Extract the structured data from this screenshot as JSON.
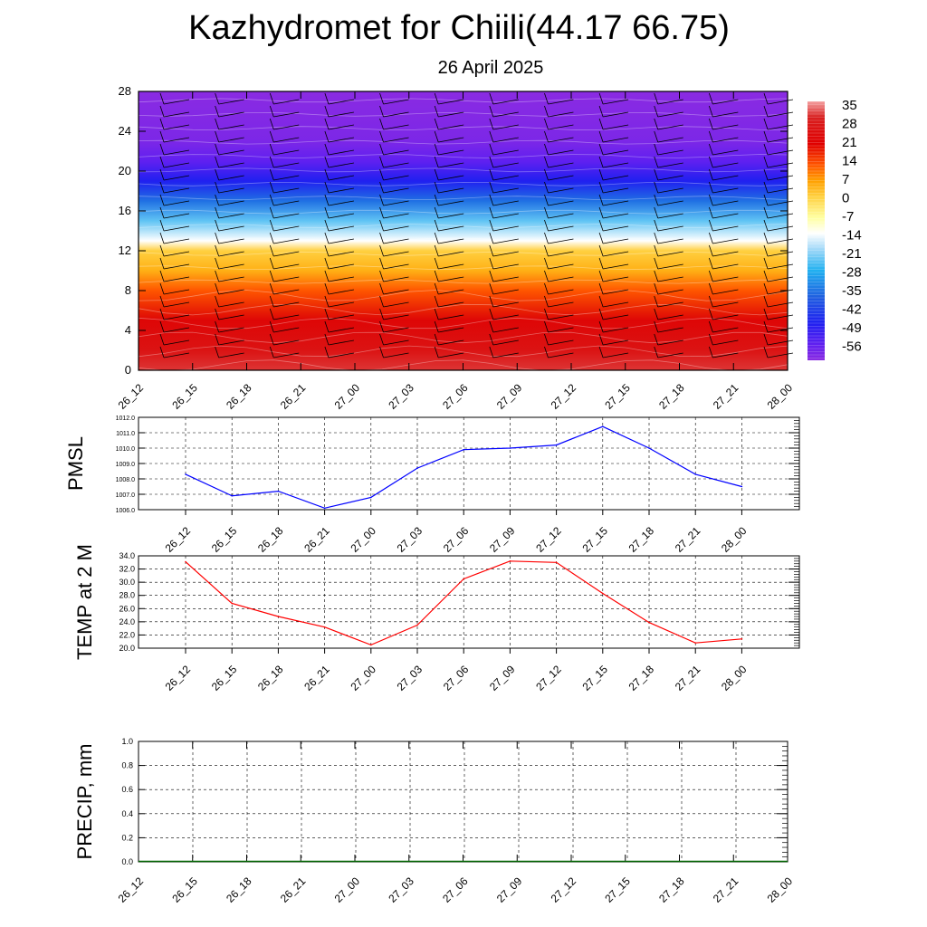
{
  "title": "Kazhydromet for Chiili(44.17 66.75)",
  "subtitle": "26 April 2025",
  "time_labels": [
    "26_12",
    "26_15",
    "26_18",
    "26_21",
    "27_00",
    "27_03",
    "27_06",
    "27_09",
    "27_12",
    "27_15",
    "27_18",
    "27_21",
    "28_00"
  ],
  "chart_data": [
    {
      "type": "heatmap",
      "name": "cross-section",
      "x": [
        "26_12",
        "26_15",
        "26_18",
        "26_21",
        "27_00",
        "27_03",
        "27_06",
        "27_09",
        "27_12",
        "27_15",
        "27_18",
        "27_21",
        "28_00"
      ],
      "ylim": [
        0,
        28
      ],
      "yticks": [
        0,
        4,
        8,
        12,
        16,
        20,
        24,
        28
      ],
      "colorbar": {
        "labels": [
          "35",
          "28",
          "21",
          "14",
          "7",
          "0",
          "-7",
          "-14",
          "-21",
          "-28",
          "-35",
          "-42",
          "-49",
          "-56"
        ],
        "stops": [
          {
            "value": 36,
            "color": "#f4a0a0"
          },
          {
            "value": 30,
            "color": "#d82020"
          },
          {
            "value": 20,
            "color": "#e00000"
          },
          {
            "value": 12,
            "color": "#ff5500"
          },
          {
            "value": 6,
            "color": "#ffa000"
          },
          {
            "value": 0,
            "color": "#ffd040"
          },
          {
            "value": -8,
            "color": "#ffffa0"
          },
          {
            "value": -14,
            "color": "#ffffff"
          },
          {
            "value": -20,
            "color": "#a0d8f8"
          },
          {
            "value": -28,
            "color": "#20b0f0"
          },
          {
            "value": -38,
            "color": "#2060e0"
          },
          {
            "value": -48,
            "color": "#2020f0"
          },
          {
            "value": -56,
            "color": "#6020f0"
          },
          {
            "value": -62,
            "color": "#8a2be2"
          }
        ]
      },
      "profile": [
        [
          0,
          31
        ],
        [
          2,
          26
        ],
        [
          5,
          22
        ],
        [
          8,
          12
        ],
        [
          10,
          4
        ],
        [
          12,
          0
        ],
        [
          13,
          -14
        ],
        [
          15,
          -24
        ],
        [
          17,
          -36
        ],
        [
          19,
          -48
        ],
        [
          21,
          -56
        ],
        [
          23,
          -60
        ],
        [
          28,
          -62
        ]
      ]
    },
    {
      "type": "line",
      "name": "PMSL",
      "ylabel": "PMSL",
      "x": [
        "26_12",
        "26_15",
        "26_18",
        "26_21",
        "27_00",
        "27_03",
        "27_06",
        "27_09",
        "27_12",
        "27_15",
        "27_18",
        "27_21",
        "28_00"
      ],
      "values": [
        1008.3,
        1006.9,
        1007.2,
        1006.1,
        1006.8,
        1008.7,
        1009.9,
        1010.0,
        1010.2,
        1011.4,
        1010.0,
        1008.3,
        1007.5
      ],
      "ylim": [
        1006.0,
        1012.0
      ],
      "ytick_labels": [
        "1006.0",
        "1007.0",
        "1008.0",
        "1009.0",
        "1010.0",
        "1011.0",
        "1012.0"
      ],
      "color": "#0000ff",
      "grid": true
    },
    {
      "type": "line",
      "name": "TEMP",
      "ylabel": "TEMP at 2 M",
      "x": [
        "26_12",
        "26_15",
        "26_18",
        "26_21",
        "27_00",
        "27_03",
        "27_06",
        "27_09",
        "27_12",
        "27_15",
        "27_18",
        "27_21",
        "28_00"
      ],
      "values": [
        33.1,
        26.8,
        24.8,
        23.2,
        20.5,
        23.5,
        30.5,
        33.2,
        33.0,
        28.3,
        23.9,
        20.8,
        21.4
      ],
      "ylim": [
        20.0,
        34.0
      ],
      "ytick_labels": [
        "20.0",
        "22.0",
        "24.0",
        "26.0",
        "28.0",
        "30.0",
        "32.0",
        "34.0"
      ],
      "color": "#ff0000",
      "grid": true
    },
    {
      "type": "line",
      "name": "PRECIP",
      "ylabel": "PRECIP, mm",
      "x": [
        "26_12",
        "26_15",
        "26_18",
        "26_21",
        "27_00",
        "27_03",
        "27_06",
        "27_09",
        "27_12",
        "27_15",
        "27_18",
        "27_21",
        "28_00"
      ],
      "values": [
        0,
        0,
        0,
        0,
        0,
        0,
        0,
        0,
        0,
        0,
        0,
        0,
        0
      ],
      "ylim": [
        0.0,
        1.0
      ],
      "ytick_labels": [
        "0.0",
        "0.2",
        "0.4",
        "0.6",
        "0.8",
        "1.0"
      ],
      "color": "#006400",
      "grid": true
    }
  ]
}
